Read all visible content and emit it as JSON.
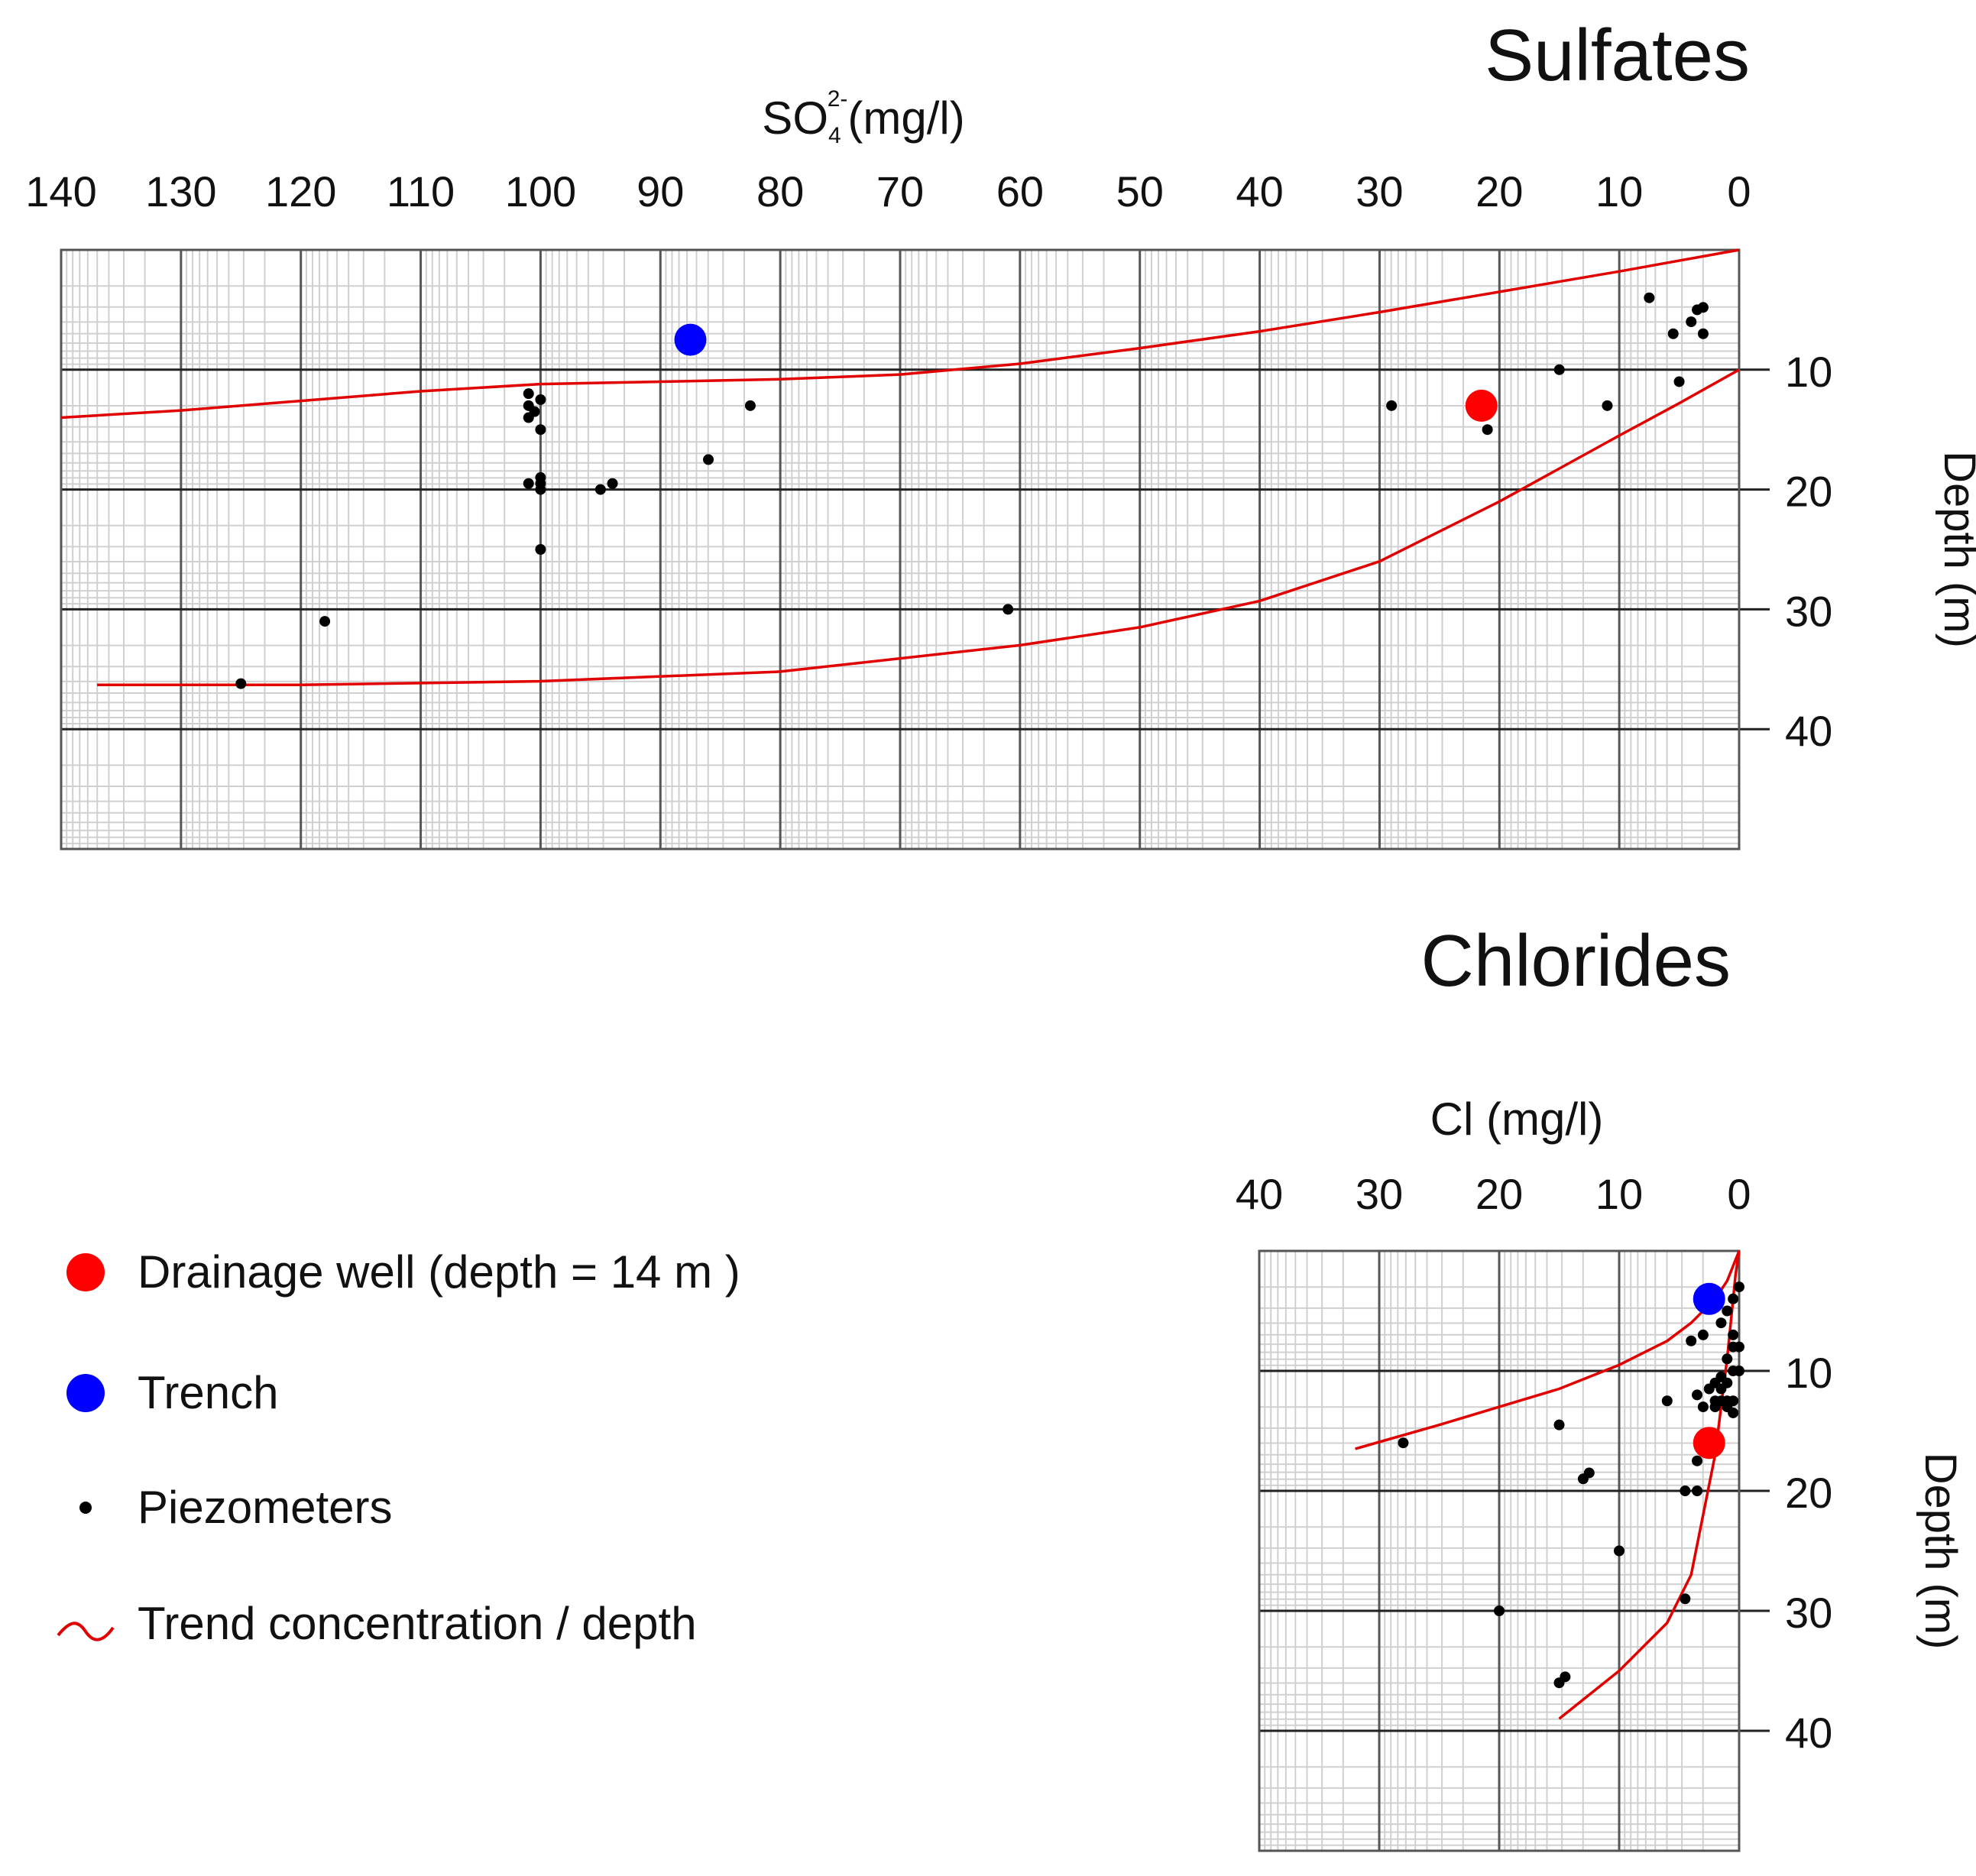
{
  "legend": {
    "drainage_well": "Drainage well (depth = 14 m )",
    "trench": "Trench",
    "piezometers": "Piezometers",
    "trend": "Trend concentration / depth"
  },
  "colors": {
    "drainage_well": "#ff0000",
    "trench": "#0000ff",
    "piezometer": "#000000",
    "trend": "#e00000"
  },
  "chart_data": [
    {
      "type": "scatter",
      "title": "Sulfates",
      "xlabel_main": "SO",
      "xlabel_sub": "4",
      "xlabel_sup": "2-",
      "xlabel_unit": "(mg/l)",
      "ylabel": "Depth (m)",
      "xlim": [
        140,
        0
      ],
      "ylim": [
        0,
        50
      ],
      "x_ticks": [
        140,
        130,
        120,
        110,
        100,
        90,
        80,
        70,
        60,
        50,
        40,
        30,
        20,
        10,
        0
      ],
      "y_ticks": [
        10,
        20,
        30,
        40
      ],
      "series": [
        {
          "name": "Piezometers",
          "points": [
            [
              7.5,
              4
            ],
            [
              3.5,
              5
            ],
            [
              3,
              4.8
            ],
            [
              5.5,
              7
            ],
            [
              3,
              7
            ],
            [
              4,
              6
            ],
            [
              15,
              10
            ],
            [
              5,
              11
            ],
            [
              11,
              13
            ],
            [
              29,
              13
            ],
            [
              21,
              15
            ],
            [
              82.5,
              13
            ],
            [
              86,
              17.5
            ],
            [
              101,
              12
            ],
            [
              100,
              12.5
            ],
            [
              101,
              13
            ],
            [
              100.5,
              13.5
            ],
            [
              101,
              14
            ],
            [
              100,
              15
            ],
            [
              101,
              19.5
            ],
            [
              100,
              19
            ],
            [
              100,
              19.5
            ],
            [
              100,
              20
            ],
            [
              95,
              20
            ],
            [
              94,
              19.5
            ],
            [
              100,
              25
            ],
            [
              61,
              30
            ],
            [
              118,
              31
            ],
            [
              125,
              36.2
            ]
          ]
        },
        {
          "name": "Trench",
          "points": [
            [
              87.5,
              7.5
            ]
          ]
        },
        {
          "name": "Drainage well",
          "points": [
            [
              21.5,
              13
            ]
          ]
        },
        {
          "name": "Trend upper",
          "points": [
            [
              140,
              14
            ],
            [
              130,
              13.4
            ],
            [
              120,
              12.6
            ],
            [
              110,
              11.8
            ],
            [
              100,
              11.2
            ],
            [
              90,
              11
            ],
            [
              80,
              10.8
            ],
            [
              70,
              10.4
            ],
            [
              60,
              9.5
            ],
            [
              50,
              8.2
            ],
            [
              40,
              6.8
            ],
            [
              30,
              5.2
            ],
            [
              20,
              3.5
            ],
            [
              10,
              1.8
            ],
            [
              0,
              0
            ]
          ]
        },
        {
          "name": "Trend lower",
          "points": [
            [
              137,
              36.3
            ],
            [
              120,
              36.3
            ],
            [
              100,
              36
            ],
            [
              80,
              35.2
            ],
            [
              60,
              33
            ],
            [
              50,
              31.5
            ],
            [
              40,
              29.3
            ],
            [
              30,
              26
            ],
            [
              20,
              21
            ],
            [
              10,
              15.5
            ],
            [
              5,
              12.8
            ],
            [
              0,
              10
            ]
          ]
        }
      ]
    },
    {
      "type": "scatter",
      "title": "Chlorides",
      "xlabel_main": "Cl",
      "xlabel_sub": "",
      "xlabel_sup": "",
      "xlabel_unit": "(mg/l)",
      "ylabel": "Depth (m)",
      "xlim": [
        40,
        0
      ],
      "ylim": [
        0,
        50
      ],
      "x_ticks": [
        40,
        30,
        20,
        10,
        0
      ],
      "y_ticks": [
        10,
        20,
        30,
        40
      ],
      "series": [
        {
          "name": "Piezometers",
          "points": [
            [
              0,
              3
            ],
            [
              0.5,
              4
            ],
            [
              1,
              5
            ],
            [
              1.5,
              6
            ],
            [
              3,
              7
            ],
            [
              4,
              7.5
            ],
            [
              0.5,
              7
            ],
            [
              0,
              8
            ],
            [
              0.5,
              8
            ],
            [
              1,
              9
            ],
            [
              0.5,
              10
            ],
            [
              0,
              10
            ],
            [
              1.5,
              10.5
            ],
            [
              1,
              11
            ],
            [
              2,
              11
            ],
            [
              1.5,
              11.5
            ],
            [
              2.5,
              11.5
            ],
            [
              3.5,
              12
            ],
            [
              2,
              12.5
            ],
            [
              1.5,
              12.5
            ],
            [
              1,
              12.5
            ],
            [
              0.5,
              12.5
            ],
            [
              3,
              13
            ],
            [
              2,
              13
            ],
            [
              1,
              13
            ],
            [
              0.5,
              13.5
            ],
            [
              6,
              12.5
            ],
            [
              15,
              14.5
            ],
            [
              28,
              16
            ],
            [
              3.5,
              17.5
            ],
            [
              12.5,
              18.5
            ],
            [
              13,
              19
            ],
            [
              4.5,
              20
            ],
            [
              3.5,
              20
            ],
            [
              10,
              25
            ],
            [
              4.5,
              29
            ],
            [
              20,
              30
            ],
            [
              14.5,
              35.5
            ],
            [
              15,
              36
            ]
          ]
        },
        {
          "name": "Trench",
          "points": [
            [
              2.5,
              4
            ]
          ]
        },
        {
          "name": "Drainage well",
          "points": [
            [
              2.5,
              16
            ]
          ]
        },
        {
          "name": "Trend upper",
          "points": [
            [
              32,
              16.5
            ],
            [
              25,
              14.5
            ],
            [
              20,
              13
            ],
            [
              15,
              11.5
            ],
            [
              10,
              9.5
            ],
            [
              6,
              7.5
            ],
            [
              4,
              6
            ],
            [
              2,
              4
            ],
            [
              1,
              2.5
            ],
            [
              0,
              0
            ]
          ]
        },
        {
          "name": "Trend lower",
          "points": [
            [
              15,
              39
            ],
            [
              10,
              35
            ],
            [
              6,
              31
            ],
            [
              4,
              27
            ],
            [
              3,
              22
            ],
            [
              2,
              17
            ],
            [
              1.5,
              13
            ],
            [
              1,
              9
            ],
            [
              0.6,
              5
            ],
            [
              0.3,
              2
            ],
            [
              0,
              0
            ]
          ]
        }
      ]
    }
  ]
}
